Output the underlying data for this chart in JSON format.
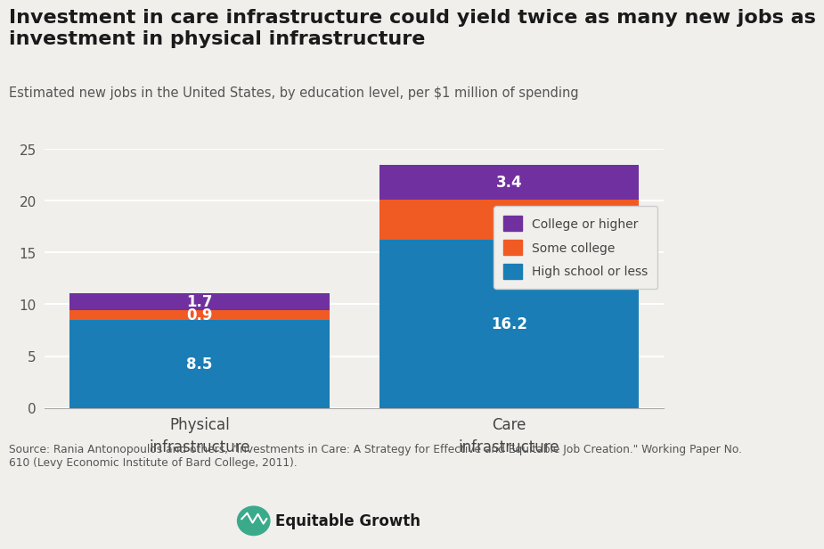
{
  "title": "Investment in care infrastructure could yield twice as many new jobs as\ninvestment in physical infrastructure",
  "subtitle": "Estimated new jobs in the United States, by education level, per $1 million of spending",
  "categories": [
    "Physical\ninfrastructure",
    "Care\ninfrastructure"
  ],
  "high_school": [
    8.5,
    16.2
  ],
  "some_college": [
    0.9,
    3.9
  ],
  "college_higher": [
    1.7,
    3.4
  ],
  "colors": {
    "high_school": "#1a7db5",
    "some_college": "#f05a23",
    "college_higher": "#7030a0"
  },
  "legend_labels": [
    "College or higher",
    "Some college",
    "High school or less"
  ],
  "ylim": [
    0,
    25
  ],
  "yticks": [
    0,
    5,
    10,
    15,
    20,
    25
  ],
  "source_text": "Source: Rania Antonopoulos and others, \"Investments in Care: A Strategy for Effective and Equitable Job Creation.\" Working Paper No.\n610 (Levy Economic Institute of Bard College, 2011).",
  "background_color": "#f0efec",
  "title_fontsize": 16,
  "subtitle_fontsize": 10.5,
  "bar_width": 0.42
}
